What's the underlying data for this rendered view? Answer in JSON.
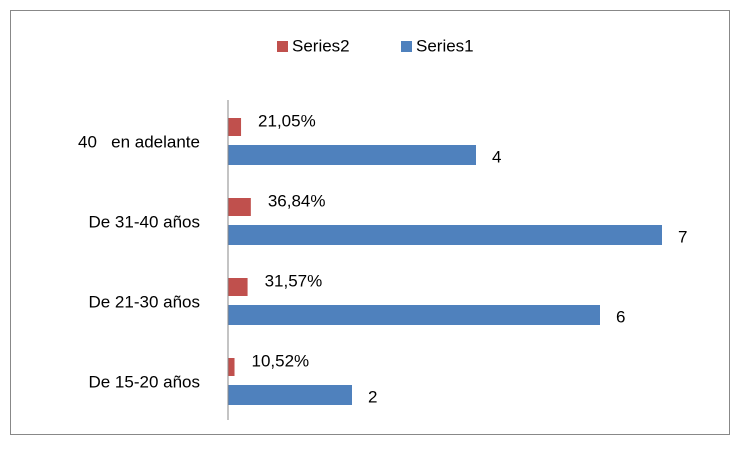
{
  "chart_data": {
    "type": "hbar",
    "categories": [
      "De 15-20 años",
      "De 21-30 años",
      "De 31-40 años",
      "40   en adelante"
    ],
    "series": [
      {
        "name": "Series2",
        "color": "#c0504d",
        "values": [
          0.1052,
          0.3157,
          0.3684,
          0.2105
        ],
        "value_labels": [
          "10,52%",
          "31,57%",
          "36,84%",
          "21,05%"
        ]
      },
      {
        "name": "Series1",
        "color": "#4f81bd",
        "values": [
          2,
          6,
          7,
          4
        ]
      }
    ],
    "xlim": [
      0,
      8
    ],
    "legend": "top"
  }
}
